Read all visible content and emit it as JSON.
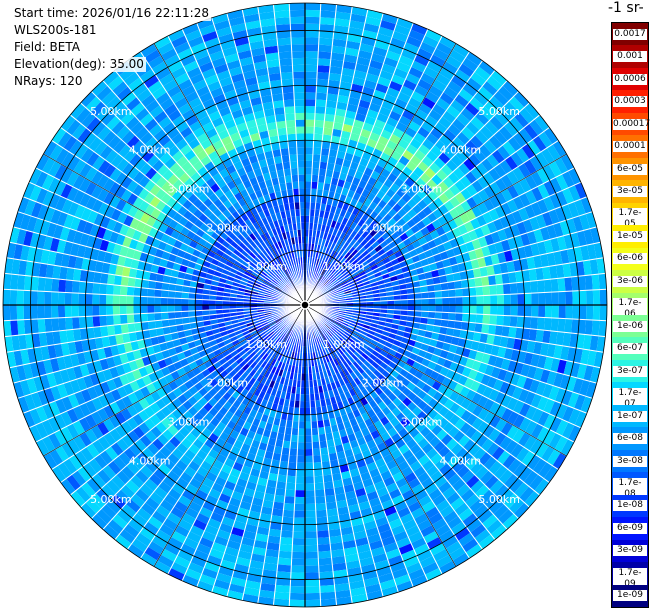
{
  "info": {
    "start_time": "Start time: 2026/01/16 22:11:28",
    "instrument": "WLS200s-181",
    "field": "Field: BETA",
    "elevation": "Elevation(deg): 35.00",
    "nrays": "NRays: 120"
  },
  "colorbar": {
    "title": "-1 sr-",
    "labels": [
      "0.0017",
      "0.001",
      "0.0006",
      "0.0003",
      "0.00017",
      "0.0001",
      "6e-05",
      "3e-05",
      "1.7e-05",
      "1e-05",
      "6e-06",
      "3e-06",
      "1.7e-06",
      "1e-06",
      "6e-07",
      "3e-07",
      "1.7e-07",
      "1e-07",
      "6e-08",
      "3e-08",
      "1.7e-08",
      "1e-08",
      "6e-09",
      "3e-09",
      "1.7e-09",
      "1e-09"
    ],
    "colors": [
      "#800000",
      "#b00000",
      "#e00000",
      "#ff2000",
      "#ff4a00",
      "#ff7000",
      "#ff9400",
      "#ffb400",
      "#ffd200",
      "#ffee00",
      "#f4ff1a",
      "#ccff44",
      "#a4ff6c",
      "#7cff94",
      "#54ffbc",
      "#2cf4e4",
      "#04d8ff",
      "#00b8ff",
      "#0098ff",
      "#0078ff",
      "#0058ff",
      "#0038ff",
      "#0014ff",
      "#0000d8",
      "#0000a8",
      "#000080"
    ]
  },
  "chart_data": {
    "type": "heatmap",
    "subtype": "polar-ppi",
    "nrays": 120,
    "max_range_km": 5.5,
    "range_rings_km": [
      1,
      2,
      3,
      4,
      5
    ],
    "ring_labels": [
      "1.00km",
      "2.00km",
      "3.00km",
      "4.00km",
      "5.00km"
    ],
    "field": "BETA",
    "elevation_deg": 35.0,
    "color_scale": "log",
    "value_range": [
      1e-09,
      0.0017
    ],
    "features": [
      {
        "description": "elevated backscatter band",
        "range_km": [
          3.0,
          3.6
        ],
        "value": 1.7e-06
      },
      {
        "description": "background",
        "value": 6e-08
      }
    ]
  }
}
